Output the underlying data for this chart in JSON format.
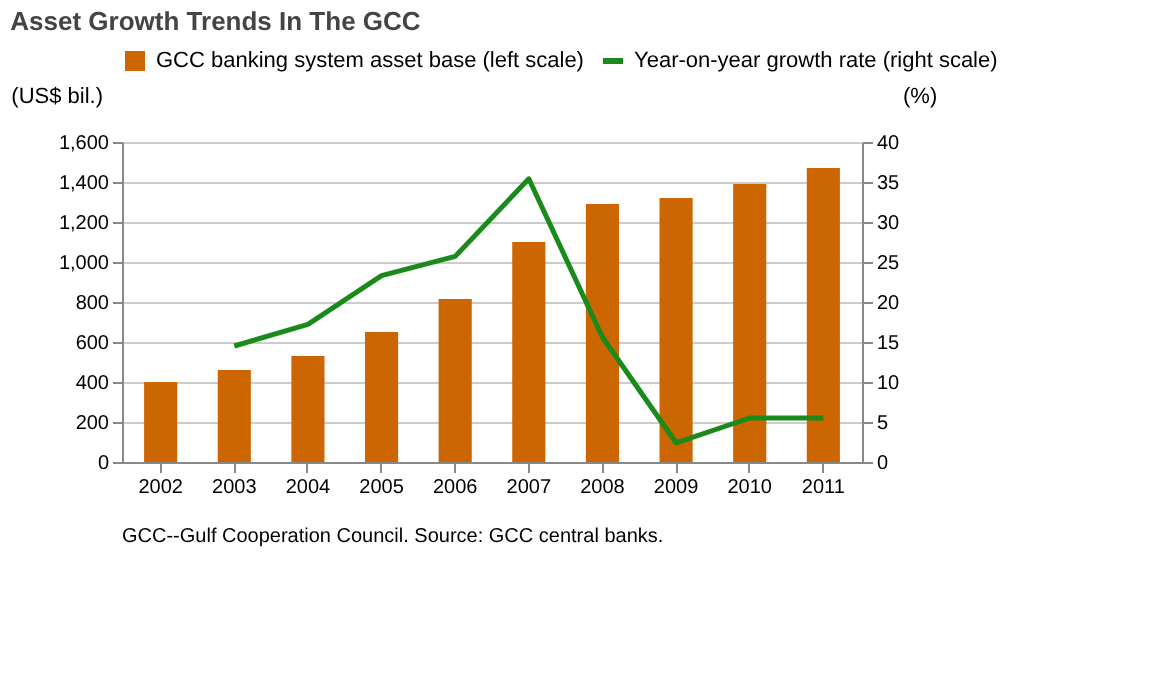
{
  "chart_data": {
    "type": "bar",
    "title": "Asset Growth Trends In The GCC",
    "categories": [
      "2002",
      "2003",
      "2004",
      "2005",
      "2006",
      "2007",
      "2008",
      "2009",
      "2010",
      "2011"
    ],
    "series": [
      {
        "name": "GCC banking system asset base (left scale)",
        "color": "#cc6600",
        "values": [
          400,
          460,
          530,
          650,
          815,
          1100,
          1290,
          1320,
          1390,
          1470
        ]
      },
      {
        "name": "Year-on-year growth rate (right scale)",
        "type": "line",
        "axis": "y2",
        "color": "#1a8a1a",
        "values": [
          null,
          14.5,
          17.2,
          23.3,
          25.7,
          35.4,
          15.6,
          2.4,
          5.5,
          5.5
        ]
      }
    ],
    "ylabel": "(US$ bil.)",
    "y2label": "(%)",
    "ylim": [
      0,
      1600
    ],
    "yticks": [
      {
        "value": 0,
        "label": "0"
      },
      {
        "value": 200,
        "label": "200"
      },
      {
        "value": 400,
        "label": "400"
      },
      {
        "value": 600,
        "label": "600"
      },
      {
        "value": 800,
        "label": "800"
      },
      {
        "value": 1000,
        "label": "1,000"
      },
      {
        "value": 1200,
        "label": "1,200"
      },
      {
        "value": 1400,
        "label": "1,400"
      },
      {
        "value": 1600,
        "label": "1,600"
      }
    ],
    "y2lim": [
      0,
      40
    ],
    "y2ticks": [
      0,
      5,
      10,
      15,
      20,
      25,
      30,
      35,
      40
    ],
    "grid": "y",
    "legend": "top",
    "marker": "none",
    "line_style": "solid",
    "annotations": [
      "GCC--Gulf Cooperation Council. Source: GCC central banks."
    ]
  }
}
